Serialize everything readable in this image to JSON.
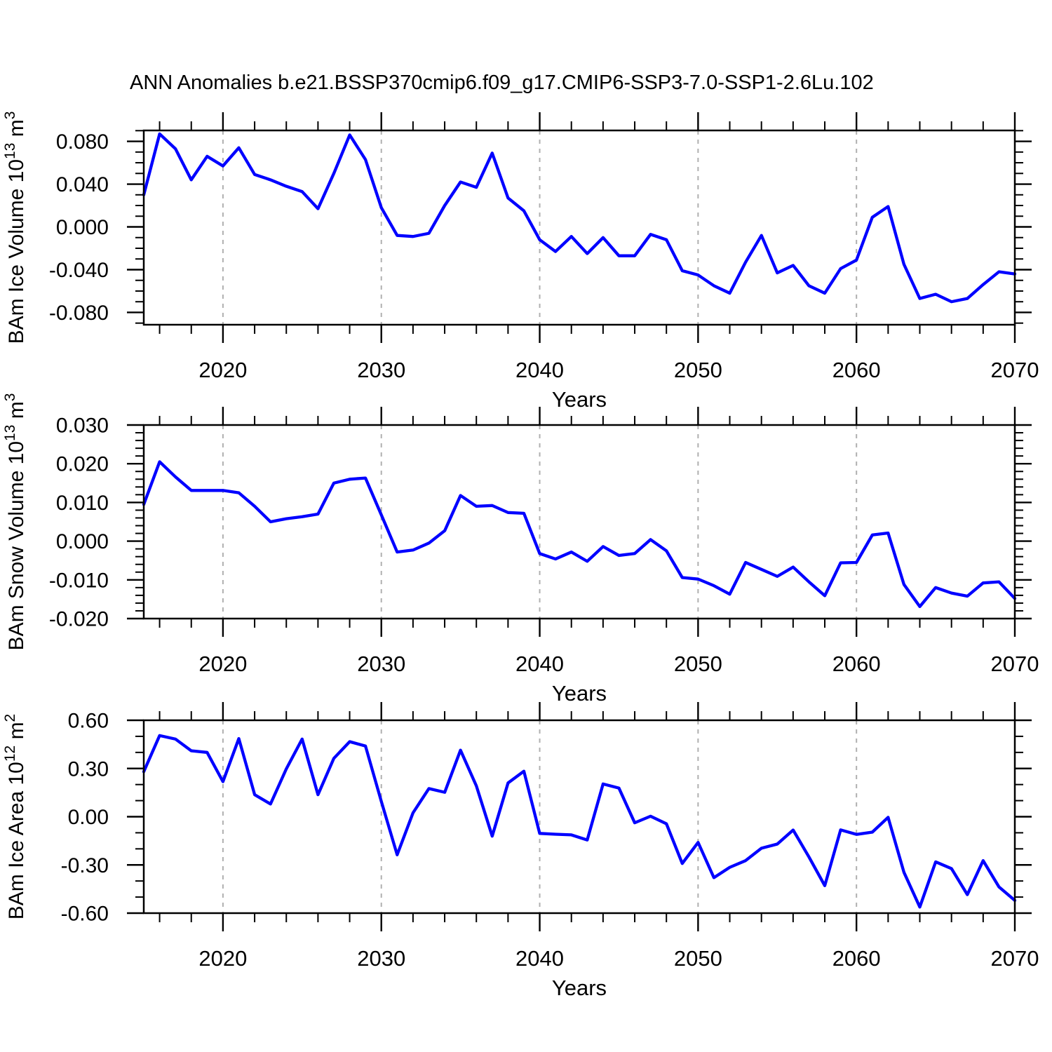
{
  "title": "ANN Anomalies b.e21.BSSP370cmip6.f09_g17.CMIP6-SSP3-7.0-SSP1-2.6Lu.102",
  "colors": {
    "line": "#0000ff",
    "grid": "#b0b0b0",
    "axis": "#000000",
    "background": "#ffffff",
    "text": "#000000"
  },
  "x_axis": {
    "label": "Years",
    "major_ticks": [
      2020,
      2030,
      2040,
      2050,
      2060,
      2070
    ],
    "tick_labels": [
      "2020",
      "2030",
      "2040",
      "2050",
      "2060",
      "2070"
    ],
    "minor_step_years": 2,
    "gridline_years": [
      2020,
      2030,
      2040,
      2050,
      2060
    ]
  },
  "chart_data": [
    {
      "type": "line",
      "series_name": "BAm Ice Volume anomaly",
      "ylabel": {
        "text": "BAm Ice Volume",
        "scale_base": "10",
        "scale_exponent": "13",
        "unit": "m",
        "unit_exponent": "3"
      },
      "ylim": [
        -0.0915,
        0.0902
      ],
      "y_major_ticks": [
        0.08,
        0.04,
        0.0,
        -0.04,
        -0.08
      ],
      "y_tick_labels": [
        "0.080",
        "0.040",
        "0.000",
        "-0.040",
        "-0.080"
      ],
      "y_minor_step": 0.01,
      "x": [
        2015,
        2016,
        2017,
        2018,
        2019,
        2020,
        2021,
        2022,
        2023,
        2024,
        2025,
        2026,
        2027,
        2028,
        2029,
        2030,
        2031,
        2032,
        2033,
        2034,
        2035,
        2036,
        2037,
        2038,
        2039,
        2040,
        2041,
        2042,
        2043,
        2044,
        2045,
        2046,
        2047,
        2048,
        2049,
        2050,
        2051,
        2052,
        2053,
        2054,
        2055,
        2056,
        2057,
        2058,
        2059,
        2060,
        2061,
        2062,
        2063,
        2064,
        2065,
        2066,
        2067,
        2068,
        2069,
        2070
      ],
      "values": [
        0.03,
        0.087,
        0.073,
        0.044,
        0.066,
        0.057,
        0.074,
        0.049,
        0.044,
        0.038,
        0.033,
        0.017,
        0.05,
        0.086,
        0.063,
        0.018,
        -0.008,
        -0.009,
        -0.006,
        0.02,
        0.042,
        0.037,
        0.069,
        0.027,
        0.015,
        -0.012,
        -0.023,
        -0.009,
        -0.025,
        -0.01,
        -0.027,
        -0.027,
        -0.007,
        -0.012,
        -0.041,
        -0.045,
        -0.055,
        -0.062,
        -0.033,
        -0.008,
        -0.043,
        -0.036,
        -0.055,
        -0.062,
        -0.039,
        -0.031,
        0.009,
        0.019,
        -0.035,
        -0.067,
        -0.063,
        -0.07,
        -0.067,
        -0.054,
        -0.042,
        -0.044
      ]
    },
    {
      "type": "line",
      "series_name": "BAm Snow Volume anomaly",
      "ylabel": {
        "text": "BAm Snow Volume",
        "scale_base": "10",
        "scale_exponent": "13",
        "unit": "m",
        "unit_exponent": "3"
      },
      "ylim": [
        -0.02,
        0.03
      ],
      "y_major_ticks": [
        0.03,
        0.02,
        0.01,
        0.0,
        -0.01,
        -0.02
      ],
      "y_tick_labels": [
        "0.030",
        "0.020",
        "0.010",
        "0.000",
        "-0.010",
        "-0.020"
      ],
      "y_minor_step": 0.002,
      "x": [
        2015,
        2016,
        2017,
        2018,
        2019,
        2020,
        2021,
        2022,
        2023,
        2024,
        2025,
        2026,
        2027,
        2028,
        2029,
        2030,
        2031,
        2032,
        2033,
        2034,
        2035,
        2036,
        2037,
        2038,
        2039,
        2040,
        2041,
        2042,
        2043,
        2044,
        2045,
        2046,
        2047,
        2048,
        2049,
        2050,
        2051,
        2052,
        2053,
        2054,
        2055,
        2056,
        2057,
        2058,
        2059,
        2060,
        2061,
        2062,
        2063,
        2064,
        2065,
        2066,
        2067,
        2068,
        2069,
        2070
      ],
      "values": [
        0.0095,
        0.0205,
        0.0166,
        0.0131,
        0.0131,
        0.0131,
        0.0125,
        0.009,
        0.005,
        0.0058,
        0.0063,
        0.007,
        0.015,
        0.016,
        0.0163,
        0.0068,
        -0.0028,
        -0.0023,
        -0.0005,
        0.0027,
        0.0118,
        0.009,
        0.0092,
        0.0074,
        0.0072,
        -0.0032,
        -0.0046,
        -0.0028,
        -0.0052,
        -0.0014,
        -0.0037,
        -0.0032,
        0.0004,
        -0.0025,
        -0.0094,
        -0.0098,
        -0.0115,
        -0.0137,
        -0.0055,
        -0.0073,
        -0.0091,
        -0.0067,
        -0.0105,
        -0.0141,
        -0.0056,
        -0.0055,
        0.0016,
        0.0021,
        -0.0112,
        -0.0169,
        -0.012,
        -0.0134,
        -0.0142,
        -0.0108,
        -0.0105,
        -0.0148
      ]
    },
    {
      "type": "line",
      "series_name": "BAm Ice Area anomaly",
      "ylabel": {
        "text": "BAm Ice Area",
        "scale_base": "10",
        "scale_exponent": "12",
        "unit": "m",
        "unit_exponent": "2"
      },
      "ylim": [
        -0.6,
        0.6
      ],
      "y_major_ticks": [
        0.6,
        0.3,
        0.0,
        -0.3,
        -0.6
      ],
      "y_tick_labels": [
        "0.60",
        "0.30",
        "0.00",
        "-0.30",
        "-0.60"
      ],
      "y_minor_step": 0.1,
      "x": [
        2015,
        2016,
        2017,
        2018,
        2019,
        2020,
        2021,
        2022,
        2023,
        2024,
        2025,
        2026,
        2027,
        2028,
        2029,
        2030,
        2031,
        2032,
        2033,
        2034,
        2035,
        2036,
        2037,
        2038,
        2039,
        2040,
        2041,
        2042,
        2043,
        2044,
        2045,
        2046,
        2047,
        2048,
        2049,
        2050,
        2051,
        2052,
        2053,
        2054,
        2055,
        2056,
        2057,
        2058,
        2059,
        2060,
        2061,
        2062,
        2063,
        2064,
        2065,
        2066,
        2067,
        2068,
        2069,
        2070
      ],
      "values": [
        0.28,
        0.505,
        0.483,
        0.41,
        0.4,
        0.218,
        0.486,
        0.137,
        0.079,
        0.297,
        0.483,
        0.137,
        0.363,
        0.467,
        0.44,
        0.095,
        -0.237,
        0.024,
        0.175,
        0.152,
        0.414,
        0.192,
        -0.121,
        0.21,
        0.283,
        -0.104,
        -0.109,
        -0.113,
        -0.145,
        0.204,
        0.178,
        -0.038,
        0.003,
        -0.044,
        -0.291,
        -0.16,
        -0.379,
        -0.315,
        -0.273,
        -0.196,
        -0.17,
        -0.083,
        -0.25,
        -0.429,
        -0.082,
        -0.11,
        -0.096,
        -0.004,
        -0.346,
        -0.562,
        -0.281,
        -0.323,
        -0.485,
        -0.273,
        -0.437,
        -0.521
      ]
    }
  ]
}
